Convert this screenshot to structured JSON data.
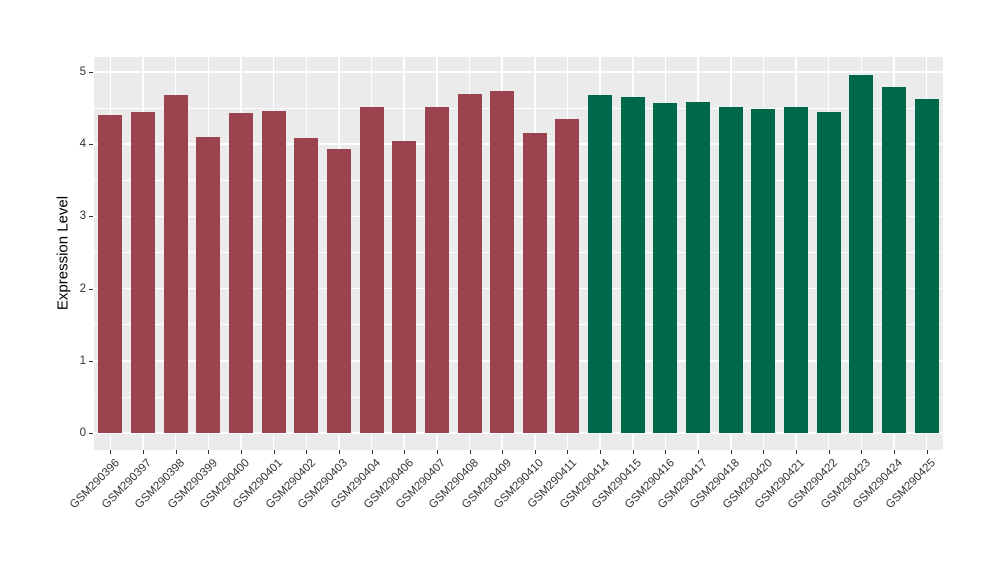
{
  "colors": {
    "panel_background": "#EBEBEB",
    "gridline": "#FFFFFF",
    "tick_text": "#333333",
    "axis_title_text": "#000000",
    "group1_bar": "#9B4450",
    "group2_bar": "#00684A"
  },
  "chart_data": {
    "type": "bar",
    "title": "",
    "xlabel": "",
    "ylabel": "Expression Level",
    "ylim": [
      -0.24,
      5.22
    ],
    "yticks": [
      0,
      1,
      2,
      3,
      4,
      5
    ],
    "yticks_minor": [
      0.5,
      1.5,
      2.5,
      3.5,
      4.5
    ],
    "grid": "white major and minor horizontal lines plus white vertical lines at category centers on gray panel",
    "legend_position": "none",
    "categories": [
      "GSM290396",
      "GSM290397",
      "GSM290398",
      "GSM290399",
      "GSM290400",
      "GSM290401",
      "GSM290402",
      "GSM290403",
      "GSM290404",
      "GSM290406",
      "GSM290407",
      "GSM290408",
      "GSM290409",
      "GSM290410",
      "GSM290411",
      "GSM290414",
      "GSM290415",
      "GSM290416",
      "GSM290417",
      "GSM290418",
      "GSM290420",
      "GSM290421",
      "GSM290422",
      "GSM290423",
      "GSM290424",
      "GSM290425"
    ],
    "values": [
      4.4,
      4.45,
      4.68,
      4.1,
      4.43,
      4.46,
      4.08,
      3.93,
      4.51,
      4.04,
      4.51,
      4.7,
      4.73,
      4.15,
      4.35,
      4.68,
      4.65,
      4.57,
      4.59,
      4.52,
      4.49,
      4.51,
      4.44,
      4.96,
      4.79,
      4.62
    ],
    "series": [
      {
        "name": "group-1-dark-red",
        "color": "#9B4450",
        "categories": [
          "GSM290396",
          "GSM290397",
          "GSM290398",
          "GSM290399",
          "GSM290400",
          "GSM290401",
          "GSM290402",
          "GSM290403",
          "GSM290404",
          "GSM290406",
          "GSM290407",
          "GSM290408",
          "GSM290409",
          "GSM290410",
          "GSM290411"
        ],
        "values": [
          4.4,
          4.45,
          4.68,
          4.1,
          4.43,
          4.46,
          4.08,
          3.93,
          4.51,
          4.04,
          4.51,
          4.7,
          4.73,
          4.15,
          4.35
        ]
      },
      {
        "name": "group-2-dark-green",
        "color": "#00684A",
        "categories": [
          "GSM290414",
          "GSM290415",
          "GSM290416",
          "GSM290417",
          "GSM290418",
          "GSM290420",
          "GSM290421",
          "GSM290422",
          "GSM290423",
          "GSM290424",
          "GSM290425"
        ],
        "values": [
          4.68,
          4.65,
          4.57,
          4.59,
          4.52,
          4.49,
          4.51,
          4.44,
          4.96,
          4.79,
          4.62
        ]
      }
    ]
  }
}
